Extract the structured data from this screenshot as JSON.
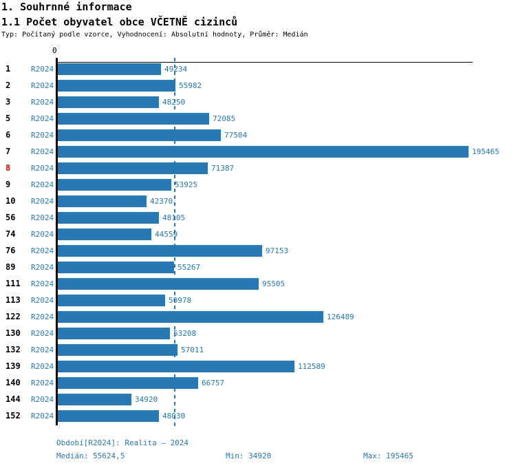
{
  "header": {
    "title": "1. Souhrnné informace",
    "subtitle": "1.1 Počet obyvatel obce VČETNĚ cizinců",
    "meta": "Typ: Počítaný podle vzorce, Vyhodnocení: Absolutní hodnoty, Průměr: Medián"
  },
  "chart_data": {
    "type": "bar",
    "orientation": "horizontal",
    "axis_zero_label": "0",
    "series_label": "R2024",
    "categories": [
      "1",
      "2",
      "3",
      "5",
      "6",
      "7",
      "8",
      "9",
      "10",
      "56",
      "74",
      "76",
      "89",
      "111",
      "113",
      "122",
      "130",
      "132",
      "139",
      "140",
      "144",
      "152"
    ],
    "values": [
      49234,
      55982,
      48250,
      72085,
      77504,
      195465,
      71387,
      53925,
      42370,
      48105,
      44559,
      97153,
      55267,
      95505,
      50978,
      126489,
      53208,
      57011,
      112589,
      66757,
      34920,
      48030
    ],
    "highlighted_category": "8",
    "xlim": [
      0,
      195465
    ],
    "median_value": 55624.5,
    "median_line": "dashed",
    "grid": false,
    "legend_position": "none",
    "bar_color": "#2878b4",
    "highlight_color": "#ee0000"
  },
  "footer": {
    "period": "Období[R2024]: Realita – 2024",
    "median": "Medián: 55624,5",
    "min": "Min: 34920",
    "max": "Max: 195465"
  }
}
